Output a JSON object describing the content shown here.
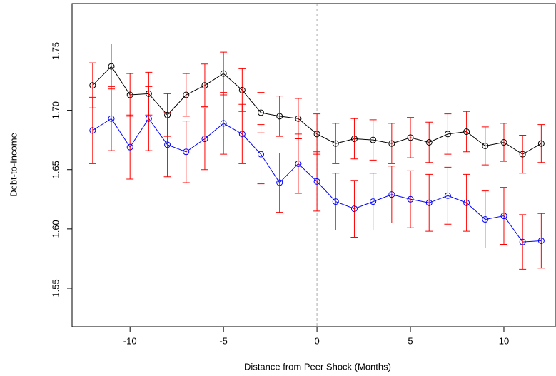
{
  "chart_data": {
    "type": "errorline",
    "xlabel": "Distance from Peer Shock (Months)",
    "ylabel": "Debt-to-Income",
    "x": [
      -12,
      -11,
      -10,
      -9,
      -8,
      -7,
      -6,
      -5,
      -4,
      -3,
      -2,
      -1,
      0,
      1,
      2,
      3,
      4,
      5,
      6,
      7,
      8,
      9,
      10,
      11,
      12
    ],
    "series": [
      {
        "color": "#000000",
        "values": [
          1.721,
          1.737,
          1.713,
          1.714,
          1.696,
          1.713,
          1.721,
          1.731,
          1.717,
          1.698,
          1.695,
          1.693,
          1.68,
          1.672,
          1.676,
          1.675,
          1.672,
          1.677,
          1.673,
          1.68,
          1.682,
          1.67,
          1.673,
          1.663,
          1.672
        ],
        "errors": [
          0.019,
          0.019,
          0.018,
          0.018,
          0.018,
          0.018,
          0.018,
          0.018,
          0.018,
          0.017,
          0.017,
          0.017,
          0.017,
          0.017,
          0.017,
          0.017,
          0.017,
          0.017,
          0.017,
          0.017,
          0.017,
          0.016,
          0.016,
          0.016,
          0.016
        ]
      },
      {
        "color": "#0000ff",
        "values": [
          1.683,
          1.693,
          1.669,
          1.693,
          1.671,
          1.665,
          1.676,
          1.689,
          1.68,
          1.663,
          1.639,
          1.655,
          1.64,
          1.623,
          1.617,
          1.623,
          1.629,
          1.625,
          1.622,
          1.628,
          1.622,
          1.608,
          1.611,
          1.589,
          1.59
        ],
        "errors": [
          0.028,
          0.027,
          0.027,
          0.027,
          0.027,
          0.026,
          0.026,
          0.026,
          0.025,
          0.025,
          0.025,
          0.025,
          0.025,
          0.024,
          0.024,
          0.024,
          0.024,
          0.024,
          0.024,
          0.024,
          0.024,
          0.024,
          0.024,
          0.023,
          0.023
        ]
      }
    ],
    "error_color": "#ff0000",
    "vline": 0,
    "xlim": [
      -13.1,
      12.75
    ],
    "ylim": [
      1.5175,
      1.79
    ],
    "xticks": [
      -10,
      -5,
      0,
      5,
      10
    ],
    "yticks": [
      1.55,
      {
        "value": 1.6,
        "label": "1.60"
      },
      1.65,
      {
        "value": 1.7,
        "label": "1.70"
      },
      1.75
    ]
  }
}
